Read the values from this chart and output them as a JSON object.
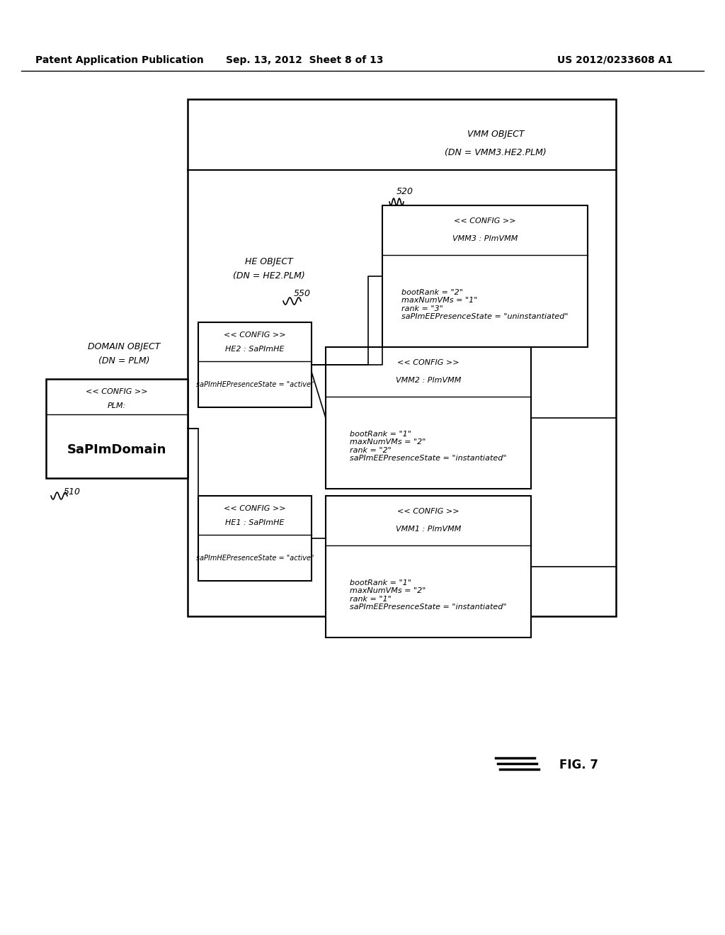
{
  "header_left": "Patent Application Publication",
  "header_center": "Sep. 13, 2012  Sheet 8 of 13",
  "header_right": "US 2012/0233608 A1",
  "fig_label": "FIG. 7",
  "bg_color": "#ffffff"
}
